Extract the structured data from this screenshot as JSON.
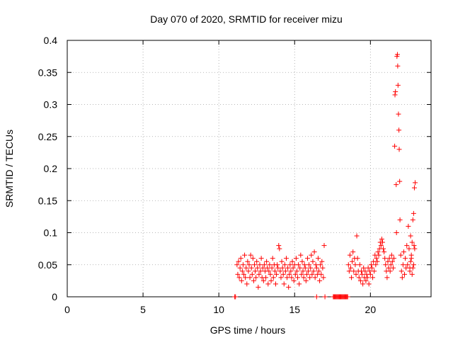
{
  "chart_data": {
    "type": "scatter",
    "title": "Day 070 of 2020, SRMTID for receiver mizu",
    "xlabel": "GPS time / hours",
    "ylabel": "SRMTID / TECUs",
    "xlim": [
      0,
      24
    ],
    "ylim": [
      0,
      0.4
    ],
    "xticks": [
      0,
      5,
      10,
      15,
      20
    ],
    "xtick_labels": [
      "0",
      "5",
      "10",
      "15",
      "20"
    ],
    "yticks": [
      0,
      0.05,
      0.1,
      0.15,
      0.2,
      0.25,
      0.3,
      0.35,
      0.4
    ],
    "ytick_labels": [
      "0",
      "0.05",
      "0.1",
      "0.15",
      "0.2",
      "0.25",
      "0.3",
      "0.35",
      "0.4"
    ],
    "grid": true,
    "marker": "+",
    "colors": {
      "series": "#ff0000",
      "grid": "#a0a0a0",
      "axis": "#000000"
    },
    "series": [
      {
        "name": "SRMTID",
        "points": [
          [
            11.05,
            0.0
          ],
          [
            11.1,
            0.0
          ],
          [
            11.2,
            0.05
          ],
          [
            11.25,
            0.035
          ],
          [
            11.3,
            0.055
          ],
          [
            11.35,
            0.03
          ],
          [
            11.4,
            0.045
          ],
          [
            11.45,
            0.06
          ],
          [
            11.5,
            0.025
          ],
          [
            11.55,
            0.04
          ],
          [
            11.6,
            0.05
          ],
          [
            11.65,
            0.035
          ],
          [
            11.7,
            0.065
          ],
          [
            11.75,
            0.03
          ],
          [
            11.8,
            0.045
          ],
          [
            11.85,
            0.02
          ],
          [
            11.9,
            0.055
          ],
          [
            11.95,
            0.04
          ],
          [
            12.0,
            0.05
          ],
          [
            12.05,
            0.03
          ],
          [
            12.1,
            0.065
          ],
          [
            12.15,
            0.045
          ],
          [
            12.2,
            0.035
          ],
          [
            12.25,
            0.06
          ],
          [
            12.3,
            0.025
          ],
          [
            12.35,
            0.05
          ],
          [
            12.4,
            0.04
          ],
          [
            12.45,
            0.03
          ],
          [
            12.5,
            0.055
          ],
          [
            12.55,
            0.045
          ],
          [
            12.6,
            0.015
          ],
          [
            12.65,
            0.035
          ],
          [
            12.7,
            0.05
          ],
          [
            12.75,
            0.04
          ],
          [
            12.8,
            0.06
          ],
          [
            12.85,
            0.03
          ],
          [
            12.9,
            0.045
          ],
          [
            12.95,
            0.025
          ],
          [
            13.0,
            0.05
          ],
          [
            13.05,
            0.04
          ],
          [
            13.1,
            0.03
          ],
          [
            13.15,
            0.055
          ],
          [
            13.2,
            0.045
          ],
          [
            13.25,
            0.02
          ],
          [
            13.3,
            0.04
          ],
          [
            13.35,
            0.05
          ],
          [
            13.4,
            0.035
          ],
          [
            13.45,
            0.025
          ],
          [
            13.5,
            0.045
          ],
          [
            13.55,
            0.06
          ],
          [
            13.6,
            0.03
          ],
          [
            13.65,
            0.05
          ],
          [
            13.7,
            0.04
          ],
          [
            13.75,
            0.02
          ],
          [
            13.8,
            0.035
          ],
          [
            13.85,
            0.05
          ],
          [
            13.9,
            0.045
          ],
          [
            13.95,
            0.08
          ],
          [
            14.0,
            0.075
          ],
          [
            14.05,
            0.04
          ],
          [
            14.1,
            0.03
          ],
          [
            14.15,
            0.055
          ],
          [
            14.2,
            0.045
          ],
          [
            14.25,
            0.035
          ],
          [
            14.3,
            0.02
          ],
          [
            14.35,
            0.05
          ],
          [
            14.4,
            0.04
          ],
          [
            14.45,
            0.06
          ],
          [
            14.5,
            0.03
          ],
          [
            14.55,
            0.045
          ],
          [
            14.6,
            0.015
          ],
          [
            14.65,
            0.035
          ],
          [
            14.7,
            0.05
          ],
          [
            14.75,
            0.04
          ],
          [
            14.8,
            0.03
          ],
          [
            14.85,
            0.055
          ],
          [
            14.9,
            0.045
          ],
          [
            14.95,
            0.025
          ],
          [
            15.0,
            0.05
          ],
          [
            15.05,
            0.035
          ],
          [
            15.1,
            0.06
          ],
          [
            15.15,
            0.04
          ],
          [
            15.2,
            0.03
          ],
          [
            15.25,
            0.05
          ],
          [
            15.3,
            0.02
          ],
          [
            15.35,
            0.045
          ],
          [
            15.4,
            0.065
          ],
          [
            15.45,
            0.035
          ],
          [
            15.5,
            0.055
          ],
          [
            15.55,
            0.04
          ],
          [
            15.6,
            0.03
          ],
          [
            15.65,
            0.05
          ],
          [
            15.7,
            0.045
          ],
          [
            15.75,
            0.025
          ],
          [
            15.8,
            0.035
          ],
          [
            15.85,
            0.06
          ],
          [
            15.9,
            0.04
          ],
          [
            15.95,
            0.05
          ],
          [
            16.0,
            0.03
          ],
          [
            16.05,
            0.045
          ],
          [
            16.1,
            0.065
          ],
          [
            16.15,
            0.035
          ],
          [
            16.2,
            0.055
          ],
          [
            16.25,
            0.04
          ],
          [
            16.3,
            0.07
          ],
          [
            16.35,
            0.03
          ],
          [
            16.4,
            0.05
          ],
          [
            16.45,
            0.045
          ],
          [
            16.5,
            0.035
          ],
          [
            16.55,
            0.06
          ],
          [
            16.6,
            0.04
          ],
          [
            16.65,
            0.025
          ],
          [
            16.7,
            0.05
          ],
          [
            16.75,
            0.035
          ],
          [
            16.8,
            0.055
          ],
          [
            16.85,
            0.045
          ],
          [
            16.9,
            0.03
          ],
          [
            16.95,
            0.08
          ],
          [
            16.45,
            0.0
          ],
          [
            17.0,
            0.0
          ],
          [
            17.55,
            0.0
          ],
          [
            17.6,
            0.0
          ],
          [
            17.65,
            0.0
          ],
          [
            17.7,
            0.0
          ],
          [
            17.75,
            0.0
          ],
          [
            17.8,
            0.0
          ],
          [
            17.85,
            0.0
          ],
          [
            17.9,
            0.0
          ],
          [
            17.95,
            0.0
          ],
          [
            18.0,
            0.0
          ],
          [
            18.05,
            0.0
          ],
          [
            18.1,
            0.0
          ],
          [
            18.15,
            0.0
          ],
          [
            18.2,
            0.0
          ],
          [
            18.25,
            0.0
          ],
          [
            18.3,
            0.0
          ],
          [
            18.35,
            0.0
          ],
          [
            18.4,
            0.0
          ],
          [
            18.45,
            0.0
          ],
          [
            18.5,
            0.0
          ],
          [
            18.55,
            0.05
          ],
          [
            18.6,
            0.04
          ],
          [
            18.65,
            0.065
          ],
          [
            18.7,
            0.045
          ],
          [
            18.75,
            0.03
          ],
          [
            18.8,
            0.055
          ],
          [
            18.85,
            0.07
          ],
          [
            18.9,
            0.04
          ],
          [
            18.95,
            0.06
          ],
          [
            19.0,
            0.05
          ],
          [
            19.05,
            0.035
          ],
          [
            19.1,
            0.095
          ],
          [
            19.15,
            0.06
          ],
          [
            19.2,
            0.04
          ],
          [
            19.25,
            0.03
          ],
          [
            19.3,
            0.05
          ],
          [
            19.35,
            0.025
          ],
          [
            19.4,
            0.04
          ],
          [
            19.45,
            0.035
          ],
          [
            19.5,
            0.02
          ],
          [
            19.55,
            0.045
          ],
          [
            19.6,
            0.03
          ],
          [
            19.65,
            0.04
          ],
          [
            19.7,
            0.025
          ],
          [
            19.75,
            0.035
          ],
          [
            19.8,
            0.03
          ],
          [
            19.85,
            0.045
          ],
          [
            19.9,
            0.02
          ],
          [
            19.95,
            0.04
          ],
          [
            20.0,
            0.035
          ],
          [
            20.05,
            0.05
          ],
          [
            20.1,
            0.045
          ],
          [
            20.15,
            0.03
          ],
          [
            20.2,
            0.055
          ],
          [
            20.25,
            0.04
          ],
          [
            20.3,
            0.065
          ],
          [
            20.35,
            0.05
          ],
          [
            20.4,
            0.06
          ],
          [
            20.45,
            0.055
          ],
          [
            20.5,
            0.07
          ],
          [
            20.55,
            0.065
          ],
          [
            20.6,
            0.075
          ],
          [
            20.65,
            0.085
          ],
          [
            20.7,
            0.08
          ],
          [
            20.75,
            0.09
          ],
          [
            20.8,
            0.085
          ],
          [
            20.85,
            0.075
          ],
          [
            20.9,
            0.07
          ],
          [
            20.95,
            0.06
          ],
          [
            21.0,
            0.05
          ],
          [
            21.05,
            0.04
          ],
          [
            21.1,
            0.03
          ],
          [
            21.15,
            0.055
          ],
          [
            21.2,
            0.045
          ],
          [
            21.25,
            0.06
          ],
          [
            21.3,
            0.04
          ],
          [
            21.35,
            0.05
          ],
          [
            21.4,
            0.065
          ],
          [
            21.45,
            0.055
          ],
          [
            21.5,
            0.045
          ],
          [
            21.55,
            0.06
          ],
          [
            21.6,
            0.235
          ],
          [
            21.62,
            0.315
          ],
          [
            21.65,
            0.32
          ],
          [
            21.7,
            0.175
          ],
          [
            21.72,
            0.1
          ],
          [
            21.75,
            0.375
          ],
          [
            21.78,
            0.378
          ],
          [
            21.8,
            0.36
          ],
          [
            21.82,
            0.33
          ],
          [
            21.85,
            0.285
          ],
          [
            21.88,
            0.26
          ],
          [
            21.9,
            0.23
          ],
          [
            21.93,
            0.18
          ],
          [
            21.95,
            0.12
          ],
          [
            22.0,
            0.065
          ],
          [
            22.05,
            0.04
          ],
          [
            22.1,
            0.03
          ],
          [
            22.15,
            0.05
          ],
          [
            22.2,
            0.07
          ],
          [
            22.25,
            0.035
          ],
          [
            22.3,
            0.06
          ],
          [
            22.35,
            0.045
          ],
          [
            22.4,
            0.08
          ],
          [
            22.45,
            0.05
          ],
          [
            22.5,
            0.11
          ],
          [
            22.55,
            0.075
          ],
          [
            22.6,
            0.045
          ],
          [
            22.65,
            0.095
          ],
          [
            22.7,
            0.06
          ],
          [
            22.75,
            0.085
          ],
          [
            22.8,
            0.12
          ],
          [
            22.85,
            0.13
          ],
          [
            22.9,
            0.17
          ],
          [
            22.95,
            0.178
          ],
          [
            22.6,
            0.04
          ],
          [
            22.65,
            0.055
          ],
          [
            22.7,
            0.065
          ],
          [
            22.75,
            0.035
          ],
          [
            22.8,
            0.045
          ],
          [
            22.85,
            0.05
          ],
          [
            22.88,
            0.08
          ],
          [
            22.92,
            0.075
          ]
        ]
      }
    ]
  }
}
